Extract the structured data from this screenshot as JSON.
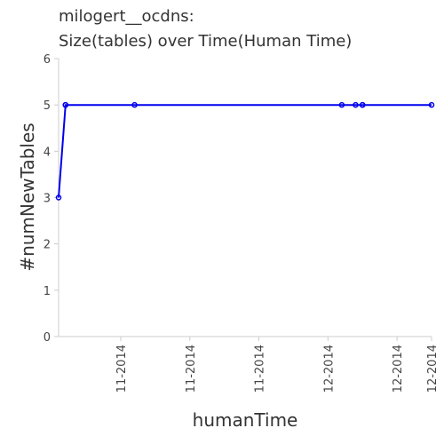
{
  "chart_data": {
    "type": "line",
    "title_line1": "milogert__ocdns:",
    "title_line2": "Size(tables) over Time(Human Time)",
    "xlabel": "humanTime",
    "ylabel": "#numNewTables",
    "ylim": [
      0,
      6
    ],
    "yticks": [
      0,
      1,
      2,
      3,
      4,
      5,
      6
    ],
    "xlim": [
      "2014-10-23",
      "2014-12-16"
    ],
    "xticks": [
      {
        "date": "2014-11-01",
        "label": "11-2014"
      },
      {
        "date": "2014-11-11",
        "label": "11-2014"
      },
      {
        "date": "2014-11-21",
        "label": "11-2014"
      },
      {
        "date": "2014-12-01",
        "label": "12-2014"
      },
      {
        "date": "2014-12-11",
        "label": "12-2014"
      },
      {
        "date": "2014-12-16",
        "label": "12-2014"
      }
    ],
    "grid": false,
    "series": [
      {
        "color": "#0000ee",
        "points": [
          {
            "x": "2014-10-23",
            "y": 3
          },
          {
            "x": "2014-10-24",
            "y": 5
          },
          {
            "x": "2014-10-24",
            "y": 5
          },
          {
            "x": "2014-11-03",
            "y": 5
          },
          {
            "x": "2014-12-03",
            "y": 5
          },
          {
            "x": "2014-12-05",
            "y": 5
          },
          {
            "x": "2014-12-06",
            "y": 5
          },
          {
            "x": "2014-12-06",
            "y": 5
          },
          {
            "x": "2014-12-16",
            "y": 5
          }
        ]
      }
    ]
  }
}
